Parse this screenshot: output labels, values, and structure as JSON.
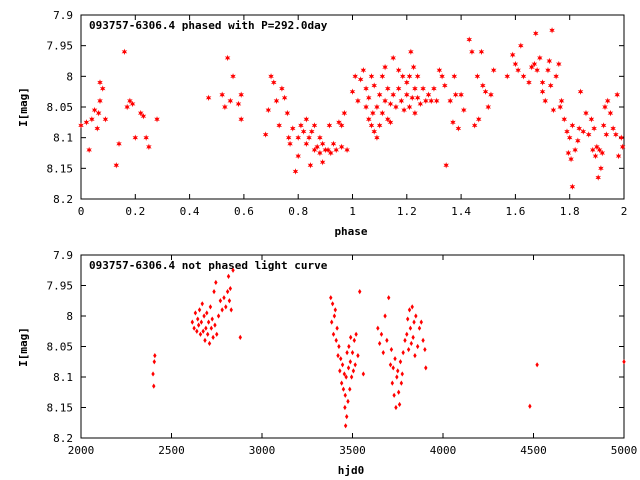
{
  "chart_data": [
    {
      "type": "scatter",
      "title": "093757-6306.4 phased with P=292.0day",
      "xlabel": "phase",
      "ylabel": "I[mag]",
      "xlim": [
        0,
        2
      ],
      "ylim": [
        7.9,
        8.2
      ],
      "y_inverted": true,
      "grid": false,
      "marker": "star",
      "color": "#ff0000",
      "x_ticks": [
        "0",
        "0.2",
        "0.4",
        "0.6",
        "0.8",
        "1",
        "1.2",
        "1.4",
        "1.6",
        "1.8",
        "2"
      ],
      "y_ticks": [
        "7.9",
        "7.95",
        "8",
        "8.05",
        "8.1",
        "8.15",
        "8.2"
      ],
      "points": [
        [
          0.0,
          8.08
        ],
        [
          0.02,
          8.075
        ],
        [
          0.03,
          8.12
        ],
        [
          0.04,
          8.07
        ],
        [
          0.05,
          8.055
        ],
        [
          0.06,
          8.085
        ],
        [
          0.065,
          8.06
        ],
        [
          0.07,
          8.04
        ],
        [
          0.07,
          8.01
        ],
        [
          0.08,
          8.02
        ],
        [
          0.09,
          8.07
        ],
        [
          0.13,
          8.145
        ],
        [
          0.14,
          8.11
        ],
        [
          0.16,
          7.96
        ],
        [
          0.17,
          8.05
        ],
        [
          0.18,
          8.04
        ],
        [
          0.19,
          8.045
        ],
        [
          0.2,
          8.1
        ],
        [
          0.22,
          8.06
        ],
        [
          0.23,
          8.065
        ],
        [
          0.24,
          8.1
        ],
        [
          0.25,
          8.115
        ],
        [
          0.28,
          8.07
        ],
        [
          0.47,
          8.035
        ],
        [
          0.52,
          8.03
        ],
        [
          0.53,
          8.05
        ],
        [
          0.54,
          7.97
        ],
        [
          0.55,
          8.04
        ],
        [
          0.56,
          8.0
        ],
        [
          0.58,
          8.045
        ],
        [
          0.59,
          8.03
        ],
        [
          0.59,
          8.07
        ],
        [
          0.68,
          8.095
        ],
        [
          0.69,
          8.055
        ],
        [
          0.7,
          8.0
        ],
        [
          0.71,
          8.01
        ],
        [
          0.72,
          8.04
        ],
        [
          0.73,
          8.08
        ],
        [
          0.74,
          8.02
        ],
        [
          0.75,
          8.035
        ],
        [
          0.76,
          8.06
        ],
        [
          0.765,
          8.1
        ],
        [
          0.77,
          8.11
        ],
        [
          0.78,
          8.085
        ],
        [
          0.79,
          8.155
        ],
        [
          0.8,
          8.13
        ],
        [
          0.8,
          8.1
        ],
        [
          0.81,
          8.08
        ],
        [
          0.82,
          8.09
        ],
        [
          0.83,
          8.11
        ],
        [
          0.83,
          8.07
        ],
        [
          0.84,
          8.1
        ],
        [
          0.845,
          8.145
        ],
        [
          0.85,
          8.09
        ],
        [
          0.86,
          8.08
        ],
        [
          0.86,
          8.12
        ],
        [
          0.87,
          8.115
        ],
        [
          0.88,
          8.125
        ],
        [
          0.88,
          8.1
        ],
        [
          0.89,
          8.11
        ],
        [
          0.89,
          8.14
        ],
        [
          0.9,
          8.12
        ],
        [
          0.91,
          8.12
        ],
        [
          0.915,
          8.08
        ],
        [
          0.92,
          8.125
        ],
        [
          0.93,
          8.11
        ],
        [
          0.94,
          8.12
        ],
        [
          0.95,
          8.075
        ],
        [
          0.96,
          8.08
        ],
        [
          0.96,
          8.115
        ],
        [
          0.97,
          8.06
        ],
        [
          0.98,
          8.12
        ],
        [
          1.0,
          8.025
        ],
        [
          1.01,
          8.0
        ],
        [
          1.02,
          8.04
        ],
        [
          1.03,
          8.005
        ],
        [
          1.04,
          7.99
        ],
        [
          1.05,
          8.02
        ],
        [
          1.05,
          8.05
        ],
        [
          1.06,
          8.07
        ],
        [
          1.06,
          8.035
        ],
        [
          1.07,
          8.0
        ],
        [
          1.07,
          8.08
        ],
        [
          1.075,
          8.06
        ],
        [
          1.08,
          8.09
        ],
        [
          1.08,
          8.015
        ],
        [
          1.09,
          8.05
        ],
        [
          1.09,
          8.1
        ],
        [
          1.1,
          8.08
        ],
        [
          1.1,
          8.03
        ],
        [
          1.11,
          8.0
        ],
        [
          1.11,
          8.06
        ],
        [
          1.12,
          8.04
        ],
        [
          1.12,
          7.985
        ],
        [
          1.13,
          8.07
        ],
        [
          1.13,
          8.02
        ],
        [
          1.14,
          8.045
        ],
        [
          1.14,
          8.075
        ],
        [
          1.15,
          8.03
        ],
        [
          1.15,
          7.97
        ],
        [
          1.16,
          8.05
        ],
        [
          1.17,
          7.99
        ],
        [
          1.17,
          8.02
        ],
        [
          1.18,
          8.04
        ],
        [
          1.185,
          8.0
        ],
        [
          1.19,
          8.055
        ],
        [
          1.2,
          8.01
        ],
        [
          1.2,
          8.03
        ],
        [
          1.21,
          8.0
        ],
        [
          1.21,
          8.05
        ],
        [
          1.215,
          7.96
        ],
        [
          1.22,
          8.035
        ],
        [
          1.225,
          7.985
        ],
        [
          1.23,
          8.02
        ],
        [
          1.23,
          8.06
        ],
        [
          1.24,
          8.0
        ],
        [
          1.24,
          8.035
        ],
        [
          1.25,
          8.045
        ],
        [
          1.26,
          8.02
        ],
        [
          1.27,
          8.04
        ],
        [
          1.28,
          8.03
        ],
        [
          1.29,
          8.04
        ],
        [
          1.3,
          8.02
        ],
        [
          1.31,
          8.04
        ],
        [
          1.32,
          7.99
        ],
        [
          1.33,
          8.0
        ],
        [
          1.34,
          8.015
        ],
        [
          1.345,
          8.145
        ],
        [
          1.36,
          8.04
        ],
        [
          1.37,
          8.075
        ],
        [
          1.375,
          8.0
        ],
        [
          1.38,
          8.03
        ],
        [
          1.39,
          8.085
        ],
        [
          1.4,
          8.03
        ],
        [
          1.41,
          8.055
        ],
        [
          1.43,
          7.94
        ],
        [
          1.44,
          7.96
        ],
        [
          1.45,
          8.08
        ],
        [
          1.46,
          8.0
        ],
        [
          1.465,
          8.07
        ],
        [
          1.475,
          7.96
        ],
        [
          1.48,
          8.015
        ],
        [
          1.49,
          8.025
        ],
        [
          1.5,
          8.05
        ],
        [
          1.51,
          8.03
        ],
        [
          1.52,
          7.99
        ],
        [
          1.57,
          8.0
        ],
        [
          1.59,
          7.965
        ],
        [
          1.6,
          7.98
        ],
        [
          1.61,
          7.99
        ],
        [
          1.62,
          7.95
        ],
        [
          1.63,
          8.0
        ],
        [
          1.65,
          8.01
        ],
        [
          1.66,
          7.985
        ],
        [
          1.67,
          7.98
        ],
        [
          1.675,
          7.93
        ],
        [
          1.68,
          7.99
        ],
        [
          1.69,
          7.97
        ],
        [
          1.7,
          8.025
        ],
        [
          1.7,
          8.01
        ],
        [
          1.71,
          8.04
        ],
        [
          1.72,
          7.99
        ],
        [
          1.725,
          7.975
        ],
        [
          1.73,
          8.015
        ],
        [
          1.735,
          7.925
        ],
        [
          1.74,
          8.055
        ],
        [
          1.75,
          8.0
        ],
        [
          1.76,
          7.98
        ],
        [
          1.765,
          8.05
        ],
        [
          1.77,
          8.04
        ],
        [
          1.78,
          8.07
        ],
        [
          1.79,
          8.09
        ],
        [
          1.795,
          8.125
        ],
        [
          1.8,
          8.1
        ],
        [
          1.805,
          8.135
        ],
        [
          1.81,
          8.08
        ],
        [
          1.81,
          8.18
        ],
        [
          1.82,
          8.12
        ],
        [
          1.83,
          8.105
        ],
        [
          1.835,
          8.085
        ],
        [
          1.84,
          8.025
        ],
        [
          1.85,
          8.09
        ],
        [
          1.86,
          8.06
        ],
        [
          1.87,
          8.095
        ],
        [
          1.88,
          8.07
        ],
        [
          1.885,
          8.12
        ],
        [
          1.89,
          8.085
        ],
        [
          1.895,
          8.13
        ],
        [
          1.9,
          8.115
        ],
        [
          1.905,
          8.165
        ],
        [
          1.91,
          8.12
        ],
        [
          1.915,
          8.15
        ],
        [
          1.92,
          8.125
        ],
        [
          1.925,
          8.08
        ],
        [
          1.93,
          8.05
        ],
        [
          1.935,
          8.095
        ],
        [
          1.94,
          8.04
        ],
        [
          1.95,
          8.06
        ],
        [
          1.96,
          8.085
        ],
        [
          1.97,
          8.095
        ],
        [
          1.975,
          8.03
        ],
        [
          1.98,
          8.13
        ],
        [
          1.99,
          8.1
        ],
        [
          1.995,
          8.115
        ]
      ]
    },
    {
      "type": "scatter",
      "title": "093757-6306.4 not phased light curve",
      "xlabel": "hjd0",
      "ylabel": "I[mag]",
      "xlim": [
        2000,
        5000
      ],
      "ylim": [
        7.9,
        8.2
      ],
      "y_inverted": true,
      "grid": false,
      "marker": "diamond",
      "color": "#ff0000",
      "x_ticks": [
        "2000",
        "2500",
        "3000",
        "3500",
        "4000",
        "4500",
        "5000"
      ],
      "y_ticks": [
        "7.9",
        "7.95",
        "8",
        "8.05",
        "8.1",
        "8.15",
        "8.2"
      ],
      "points": [
        [
          2398,
          8.095
        ],
        [
          2402,
          8.115
        ],
        [
          2405,
          8.075
        ],
        [
          2408,
          8.065
        ],
        [
          2615,
          8.01
        ],
        [
          2625,
          8.02
        ],
        [
          2632,
          7.995
        ],
        [
          2640,
          8.025
        ],
        [
          2645,
          8.005
        ],
        [
          2650,
          8.015
        ],
        [
          2655,
          7.99
        ],
        [
          2660,
          8.03
        ],
        [
          2665,
          8.01
        ],
        [
          2670,
          7.98
        ],
        [
          2675,
          8.025
        ],
        [
          2680,
          8.0
        ],
        [
          2685,
          8.04
        ],
        [
          2690,
          8.02
        ],
        [
          2695,
          7.995
        ],
        [
          2700,
          8.03
        ],
        [
          2705,
          8.01
        ],
        [
          2710,
          8.045
        ],
        [
          2715,
          7.985
        ],
        [
          2720,
          8.02
        ],
        [
          2725,
          8.005
        ],
        [
          2730,
          8.035
        ],
        [
          2735,
          7.96
        ],
        [
          2740,
          8.015
        ],
        [
          2745,
          7.945
        ],
        [
          2750,
          8.03
        ],
        [
          2760,
          8.0
        ],
        [
          2770,
          7.975
        ],
        [
          2780,
          7.99
        ],
        [
          2790,
          7.97
        ],
        [
          2800,
          7.985
        ],
        [
          2810,
          7.96
        ],
        [
          2815,
          7.935
        ],
        [
          2820,
          7.975
        ],
        [
          2825,
          7.955
        ],
        [
          2830,
          7.99
        ],
        [
          2840,
          7.925
        ],
        [
          2880,
          8.035
        ],
        [
          3380,
          7.97
        ],
        [
          3385,
          8.01
        ],
        [
          3390,
          7.98
        ],
        [
          3395,
          8.03
        ],
        [
          3400,
          8.0
        ],
        [
          3405,
          7.99
        ],
        [
          3410,
          8.04
        ],
        [
          3415,
          8.02
        ],
        [
          3420,
          8.065
        ],
        [
          3425,
          8.05
        ],
        [
          3430,
          8.09
        ],
        [
          3435,
          8.07
        ],
        [
          3440,
          8.11
        ],
        [
          3445,
          8.08
        ],
        [
          3450,
          8.12
        ],
        [
          3455,
          8.095
        ],
        [
          3458,
          8.15
        ],
        [
          3460,
          8.13
        ],
        [
          3462,
          8.18
        ],
        [
          3465,
          8.1
        ],
        [
          3468,
          8.165
        ],
        [
          3470,
          8.06
        ],
        [
          3475,
          8.14
        ],
        [
          3478,
          8.085
        ],
        [
          3480,
          8.05
        ],
        [
          3485,
          8.12
        ],
        [
          3488,
          8.075
        ],
        [
          3490,
          8.035
        ],
        [
          3495,
          8.1
        ],
        [
          3500,
          8.06
        ],
        [
          3505,
          8.09
        ],
        [
          3510,
          8.04
        ],
        [
          3515,
          8.08
        ],
        [
          3520,
          8.03
        ],
        [
          3530,
          8.065
        ],
        [
          3540,
          7.96
        ],
        [
          3560,
          8.095
        ],
        [
          3640,
          8.02
        ],
        [
          3650,
          8.045
        ],
        [
          3660,
          8.03
        ],
        [
          3670,
          8.06
        ],
        [
          3680,
          8.0
        ],
        [
          3690,
          8.04
        ],
        [
          3700,
          7.97
        ],
        [
          3710,
          8.08
        ],
        [
          3715,
          8.055
        ],
        [
          3720,
          8.11
        ],
        [
          3725,
          8.085
        ],
        [
          3730,
          8.13
        ],
        [
          3735,
          8.07
        ],
        [
          3740,
          8.15
        ],
        [
          3745,
          8.1
        ],
        [
          3750,
          8.09
        ],
        [
          3755,
          8.125
        ],
        [
          3760,
          8.145
        ],
        [
          3765,
          8.075
        ],
        [
          3770,
          8.11
        ],
        [
          3775,
          8.095
        ],
        [
          3780,
          8.06
        ],
        [
          3790,
          8.04
        ],
        [
          3800,
          8.03
        ],
        [
          3805,
          8.005
        ],
        [
          3810,
          8.055
        ],
        [
          3815,
          7.99
        ],
        [
          3820,
          8.02
        ],
        [
          3825,
          8.045
        ],
        [
          3830,
          7.985
        ],
        [
          3835,
          8.035
        ],
        [
          3840,
          8.01
        ],
        [
          3845,
          8.065
        ],
        [
          3850,
          8.0
        ],
        [
          3860,
          8.05
        ],
        [
          3870,
          8.02
        ],
        [
          3880,
          8.01
        ],
        [
          3890,
          8.04
        ],
        [
          3900,
          8.055
        ],
        [
          3905,
          8.085
        ],
        [
          4480,
          8.148
        ],
        [
          4520,
          8.08
        ],
        [
          5000,
          8.075
        ]
      ]
    }
  ]
}
